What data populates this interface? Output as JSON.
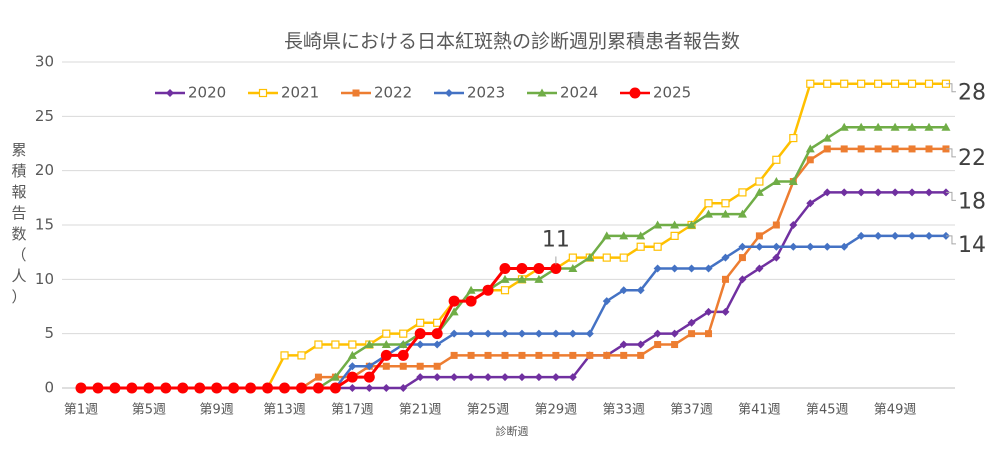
{
  "chart_data": {
    "type": "line",
    "title": "長崎県における日本紅斑熱の診断週別累積患者報告数",
    "xlabel": "診断週",
    "ylabel": "累積報告数（人）",
    "categories": [
      "第1週",
      null,
      null,
      null,
      "第5週",
      null,
      null,
      null,
      "第9週",
      null,
      null,
      null,
      "第13週",
      null,
      null,
      null,
      "第17週",
      null,
      null,
      null,
      "第21週",
      null,
      null,
      null,
      "第25週",
      null,
      null,
      null,
      "第29週",
      null,
      null,
      null,
      "第33週",
      null,
      null,
      null,
      "第37週",
      null,
      null,
      null,
      "第41週",
      null,
      null,
      null,
      "第45週",
      null,
      null,
      null,
      "第49週",
      null,
      null,
      null
    ],
    "series": [
      {
        "name": "2020",
        "color": "#7030a0",
        "marker": "diamond",
        "values": [
          0,
          0,
          0,
          0,
          0,
          0,
          0,
          0,
          0,
          0,
          0,
          0,
          0,
          0,
          0,
          0,
          0,
          0,
          0,
          0,
          1,
          1,
          1,
          1,
          1,
          1,
          1,
          1,
          1,
          1,
          3,
          3,
          4,
          4,
          5,
          5,
          6,
          7,
          7,
          10,
          11,
          12,
          15,
          17,
          18,
          18,
          18,
          18,
          18,
          18,
          18,
          18
        ],
        "value_labels": [
          null,
          null,
          null,
          null,
          null,
          null,
          null,
          null,
          null,
          null,
          null,
          null,
          null,
          null,
          null,
          null,
          null,
          null,
          null,
          null,
          null,
          null,
          null,
          null,
          null,
          null,
          null,
          null,
          null,
          null,
          null,
          null,
          null,
          null,
          null,
          null,
          null,
          null,
          null,
          null,
          null,
          null,
          null,
          null,
          null,
          null,
          null,
          null,
          null,
          null,
          null,
          "18"
        ]
      },
      {
        "name": "2021",
        "color": "#ffc000",
        "marker": "open-square",
        "values": [
          0,
          0,
          0,
          0,
          0,
          0,
          0,
          0,
          0,
          0,
          0,
          0,
          3,
          3,
          4,
          4,
          4,
          4,
          5,
          5,
          6,
          6,
          8,
          8,
          9,
          9,
          10,
          11,
          11,
          12,
          12,
          12,
          12,
          13,
          13,
          14,
          15,
          17,
          17,
          18,
          19,
          21,
          23,
          28,
          28,
          28,
          28,
          28,
          28,
          28,
          28,
          28
        ],
        "value_labels": [
          null,
          null,
          null,
          null,
          null,
          null,
          null,
          null,
          null,
          null,
          null,
          null,
          null,
          null,
          null,
          null,
          null,
          null,
          null,
          null,
          null,
          null,
          null,
          null,
          null,
          null,
          null,
          null,
          null,
          null,
          null,
          null,
          null,
          null,
          null,
          null,
          null,
          null,
          null,
          null,
          null,
          null,
          null,
          null,
          null,
          null,
          null,
          null,
          null,
          null,
          null,
          "28"
        ]
      },
      {
        "name": "2022",
        "color": "#ed7d31",
        "marker": "square",
        "values": [
          0,
          0,
          0,
          0,
          0,
          0,
          0,
          0,
          0,
          0,
          0,
          0,
          0,
          0,
          1,
          1,
          1,
          2,
          2,
          2,
          2,
          2,
          3,
          3,
          3,
          3,
          3,
          3,
          3,
          3,
          3,
          3,
          3,
          3,
          4,
          4,
          5,
          5,
          10,
          12,
          14,
          15,
          19,
          21,
          22,
          22,
          22,
          22,
          22,
          22,
          22,
          22
        ],
        "value_labels": [
          null,
          null,
          null,
          null,
          null,
          null,
          null,
          null,
          null,
          null,
          null,
          null,
          null,
          null,
          null,
          null,
          null,
          null,
          null,
          null,
          null,
          null,
          null,
          null,
          null,
          null,
          null,
          null,
          null,
          null,
          null,
          null,
          null,
          null,
          null,
          null,
          null,
          null,
          null,
          null,
          null,
          null,
          null,
          null,
          null,
          null,
          null,
          null,
          null,
          null,
          null,
          "22"
        ]
      },
      {
        "name": "2023",
        "color": "#4472c4",
        "marker": "diamond",
        "values": [
          0,
          0,
          0,
          0,
          0,
          0,
          0,
          0,
          0,
          0,
          0,
          0,
          0,
          0,
          0,
          0,
          2,
          2,
          3,
          4,
          4,
          4,
          5,
          5,
          5,
          5,
          5,
          5,
          5,
          5,
          5,
          8,
          9,
          9,
          11,
          11,
          11,
          11,
          12,
          13,
          13,
          13,
          13,
          13,
          13,
          13,
          14,
          14,
          14,
          14,
          14,
          14
        ],
        "value_labels": [
          null,
          null,
          null,
          null,
          null,
          null,
          null,
          null,
          null,
          null,
          null,
          null,
          null,
          null,
          null,
          null,
          null,
          null,
          null,
          null,
          null,
          null,
          null,
          null,
          null,
          null,
          null,
          null,
          null,
          null,
          null,
          null,
          null,
          null,
          null,
          null,
          null,
          null,
          null,
          null,
          null,
          null,
          null,
          null,
          null,
          null,
          null,
          null,
          null,
          null,
          null,
          "14"
        ]
      },
      {
        "name": "2024",
        "color": "#70ad47",
        "marker": "triangle",
        "values": [
          0,
          0,
          0,
          0,
          0,
          0,
          0,
          0,
          0,
          0,
          0,
          0,
          0,
          0,
          0,
          1,
          3,
          4,
          4,
          4,
          5,
          5,
          7,
          9,
          9,
          10,
          10,
          10,
          11,
          11,
          12,
          14,
          14,
          14,
          15,
          15,
          15,
          16,
          16,
          16,
          18,
          19,
          19,
          22,
          23,
          24,
          24,
          24,
          24,
          24,
          24,
          24
        ]
      },
      {
        "name": "2025",
        "color": "#ff0000",
        "marker": "circle",
        "values": [
          0,
          0,
          0,
          0,
          0,
          0,
          0,
          0,
          0,
          0,
          0,
          0,
          0,
          0,
          0,
          0,
          1,
          1,
          3,
          3,
          5,
          5,
          8,
          8,
          9,
          11,
          11,
          11,
          11,
          null,
          null,
          null,
          null,
          null,
          null,
          null,
          null,
          null,
          null,
          null,
          null,
          null,
          null,
          null,
          null,
          null,
          null,
          null,
          null,
          null,
          null,
          null
        ],
        "value_labels": [
          null,
          null,
          null,
          null,
          null,
          null,
          null,
          null,
          null,
          null,
          null,
          null,
          null,
          null,
          null,
          null,
          null,
          null,
          null,
          null,
          null,
          null,
          null,
          null,
          null,
          null,
          null,
          null,
          "11",
          null,
          null,
          null,
          null,
          null,
          null,
          null,
          null,
          null,
          null,
          null,
          null,
          null,
          null,
          null,
          null,
          null,
          null,
          null,
          null,
          null,
          null,
          null
        ]
      }
    ],
    "ylim": [
      0,
      30
    ],
    "yticks": [
      0,
      5,
      10,
      15,
      20,
      25,
      30
    ],
    "grid": true,
    "legend": "top"
  }
}
